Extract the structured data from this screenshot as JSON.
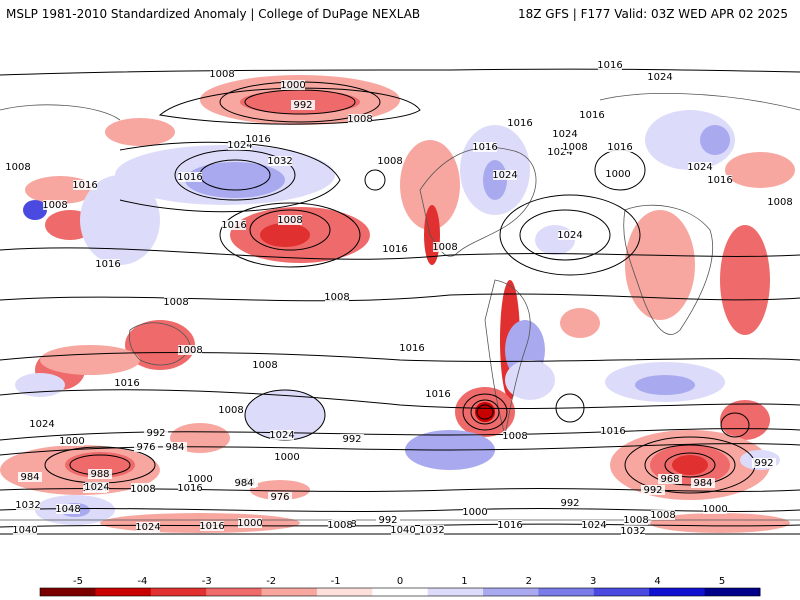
{
  "header": {
    "title_left": "MSLP 1981-2010 Standardized Anomaly | College of DuPage NEXLAB",
    "title_right": "18Z GFS | F177 Valid: 03Z WED APR 02 2025"
  },
  "colorbar": {
    "ticks": [
      "-5",
      "-4",
      "-3",
      "-2",
      "-1",
      "0",
      "1",
      "2",
      "3",
      "4",
      "5"
    ],
    "colors": [
      "#7a0000",
      "#c80000",
      "#e03030",
      "#ef6a6a",
      "#f7a7a0",
      "#fde0dc",
      "#ffffff",
      "#dcdcfa",
      "#a9a9f0",
      "#7a7ae8",
      "#4a4ae0",
      "#1010d0",
      "#00008a"
    ]
  },
  "isobar_labels": [
    "1008",
    "1000",
    "992",
    "1008",
    "1016",
    "1024",
    "1016",
    "1016",
    "1024",
    "1016",
    "1024",
    "1008",
    "1008",
    "1016",
    "1024",
    "1032",
    "1016",
    "1008",
    "1016",
    "1016",
    "1008",
    "1016",
    "1016",
    "1024",
    "1024",
    "1008",
    "1000",
    "1024",
    "1008",
    "1016",
    "1016",
    "1008",
    "1008",
    "1008",
    "1016",
    "1008",
    "1016",
    "1016",
    "1008",
    "1016",
    "1008",
    "1024",
    "1024",
    "1008",
    "1016",
    "1000",
    "992",
    "1000",
    "992",
    "984",
    "1024",
    "1008",
    "976",
    "992",
    "1008",
    "1000",
    "988",
    "984",
    "976",
    "984",
    "1032",
    "1048",
    "1024",
    "1008",
    "1016",
    "1000",
    "984",
    "992",
    "1008",
    "1040",
    "1024",
    "1016",
    "1000",
    "1008",
    "992",
    "1000",
    "1016",
    "1024",
    "1032",
    "992",
    "1008",
    "1032",
    "1000",
    "992",
    "968",
    "984",
    "1040",
    "1032",
    "1016"
  ]
}
